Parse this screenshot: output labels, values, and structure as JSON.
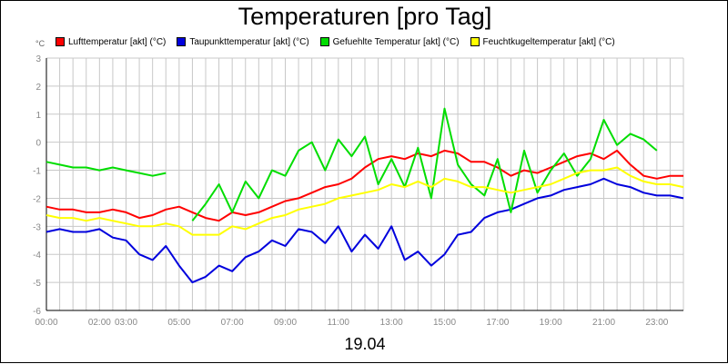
{
  "chart_data": {
    "type": "line",
    "title": "Temperaturen [pro Tag]",
    "date_label": "19.04",
    "unit": "°C",
    "ylim": [
      -6,
      3
    ],
    "xlim": [
      0,
      24
    ],
    "yticks": [
      3,
      2,
      1,
      0,
      -1,
      -2,
      -3,
      -4,
      -5,
      -6
    ],
    "xticks": [
      {
        "h": 0,
        "label": "00:00"
      },
      {
        "h": 2,
        "label": "02:00"
      },
      {
        "h": 3,
        "label": "03:00"
      },
      {
        "h": 5,
        "label": "05:00"
      },
      {
        "h": 7,
        "label": "07:00"
      },
      {
        "h": 9,
        "label": "09:00"
      },
      {
        "h": 11,
        "label": "11:00"
      },
      {
        "h": 13,
        "label": "13:00"
      },
      {
        "h": 15,
        "label": "15:00"
      },
      {
        "h": 17,
        "label": "17:00"
      },
      {
        "h": 19,
        "label": "19:00"
      },
      {
        "h": 21,
        "label": "21:00"
      },
      {
        "h": 23,
        "label": "23:00"
      }
    ],
    "grid": true,
    "legend_position": "top",
    "series": [
      {
        "name": "Lufttemperatur [akt] (°C)",
        "color": "#ff0000",
        "x": [
          0,
          0.5,
          1,
          1.5,
          2,
          2.5,
          3,
          3.5,
          4,
          4.5,
          5,
          5.5,
          6,
          6.5,
          7,
          7.5,
          8,
          8.5,
          9,
          9.5,
          10,
          10.5,
          11,
          11.5,
          12,
          12.5,
          13,
          13.5,
          14,
          14.5,
          15,
          15.5,
          16,
          16.5,
          17,
          17.5,
          18,
          18.5,
          19,
          19.5,
          20,
          20.5,
          21,
          21.5,
          22,
          22.5,
          23,
          23.5,
          24
        ],
        "y": [
          -2.3,
          -2.4,
          -2.4,
          -2.5,
          -2.5,
          -2.4,
          -2.5,
          -2.7,
          -2.6,
          -2.4,
          -2.3,
          -2.5,
          -2.7,
          -2.8,
          -2.5,
          -2.6,
          -2.5,
          -2.3,
          -2.1,
          -2.0,
          -1.8,
          -1.6,
          -1.5,
          -1.3,
          -0.9,
          -0.6,
          -0.5,
          -0.6,
          -0.4,
          -0.5,
          -0.3,
          -0.4,
          -0.7,
          -0.7,
          -0.9,
          -1.2,
          -1.0,
          -1.1,
          -0.9,
          -0.7,
          -0.5,
          -0.4,
          -0.6,
          -0.3,
          -0.8,
          -1.2,
          -1.3,
          -1.2,
          -1.2
        ]
      },
      {
        "name": "Taupunkttemperatur [akt] (°C)",
        "color": "#0000dd",
        "x": [
          0,
          0.5,
          1,
          1.5,
          2,
          2.5,
          3,
          3.5,
          4,
          4.5,
          5,
          5.5,
          6,
          6.5,
          7,
          7.5,
          8,
          8.5,
          9,
          9.5,
          10,
          10.5,
          11,
          11.5,
          12,
          12.5,
          13,
          13.5,
          14,
          14.5,
          15,
          15.5,
          16,
          16.5,
          17,
          17.5,
          18,
          18.5,
          19,
          19.5,
          20,
          20.5,
          21,
          21.5,
          22,
          22.5,
          23,
          23.5,
          24
        ],
        "y": [
          -3.2,
          -3.1,
          -3.2,
          -3.2,
          -3.1,
          -3.4,
          -3.5,
          -4.0,
          -4.2,
          -3.7,
          -4.4,
          -5.0,
          -4.8,
          -4.4,
          -4.6,
          -4.1,
          -3.9,
          -3.5,
          -3.7,
          -3.1,
          -3.2,
          -3.6,
          -3.0,
          -3.9,
          -3.3,
          -3.8,
          -3.0,
          -4.2,
          -3.9,
          -4.4,
          -4.0,
          -3.3,
          -3.2,
          -2.7,
          -2.5,
          -2.4,
          -2.2,
          -2.0,
          -1.9,
          -1.7,
          -1.6,
          -1.5,
          -1.3,
          -1.5,
          -1.6,
          -1.8,
          -1.9,
          -1.9,
          -2.0
        ]
      },
      {
        "name": "Gefuehlte Temperatur [akt] (°C)",
        "color": "#00dd00",
        "x": [
          0,
          0.5,
          1,
          1.5,
          2,
          2.5,
          3,
          3.5,
          4,
          4.5,
          5,
          5.5,
          6,
          6.5,
          7,
          7.5,
          8,
          8.5,
          9,
          9.5,
          10,
          10.5,
          11,
          11.5,
          12,
          12.5,
          13,
          13.5,
          14,
          14.5,
          15,
          15.5,
          16,
          16.5,
          17,
          17.5,
          18,
          18.5,
          19,
          19.5,
          20,
          20.5,
          21,
          21.5,
          22,
          22.5,
          23,
          23.5,
          24
        ],
        "y": [
          -0.7,
          -0.8,
          -0.9,
          -0.9,
          -1.0,
          -0.9,
          -1.0,
          -1.1,
          -1.2,
          -1.1,
          null,
          -2.8,
          -2.2,
          -1.5,
          -2.5,
          -1.4,
          -2.0,
          -1.0,
          -1.2,
          -0.3,
          0.0,
          -1.0,
          0.1,
          -0.5,
          0.2,
          -1.5,
          -0.6,
          -1.6,
          -0.2,
          -2.0,
          1.2,
          -0.8,
          -1.5,
          -1.9,
          -0.6,
          -2.5,
          -0.3,
          -1.8,
          -1.0,
          -0.4,
          -1.2,
          -0.6,
          0.8,
          -0.1,
          0.3,
          0.1,
          -0.3,
          null,
          null
        ]
      },
      {
        "name": "Feuchtkugeltemperatur [akt] (°C)",
        "color": "#ffff00",
        "x": [
          0,
          0.5,
          1,
          1.5,
          2,
          2.5,
          3,
          3.5,
          4,
          4.5,
          5,
          5.5,
          6,
          6.5,
          7,
          7.5,
          8,
          8.5,
          9,
          9.5,
          10,
          10.5,
          11,
          11.5,
          12,
          12.5,
          13,
          13.5,
          14,
          14.5,
          15,
          15.5,
          16,
          16.5,
          17,
          17.5,
          18,
          18.5,
          19,
          19.5,
          20,
          20.5,
          21,
          21.5,
          22,
          22.5,
          23,
          23.5,
          24
        ],
        "y": [
          -2.6,
          -2.7,
          -2.7,
          -2.8,
          -2.7,
          -2.8,
          -2.9,
          -3.0,
          -3.0,
          -2.9,
          -3.0,
          -3.3,
          -3.3,
          -3.3,
          -3.0,
          -3.1,
          -2.9,
          -2.7,
          -2.6,
          -2.4,
          -2.3,
          -2.2,
          -2.0,
          -1.9,
          -1.8,
          -1.7,
          -1.5,
          -1.6,
          -1.4,
          -1.6,
          -1.3,
          -1.4,
          -1.6,
          -1.6,
          -1.7,
          -1.8,
          -1.7,
          -1.6,
          -1.5,
          -1.3,
          -1.1,
          -1.0,
          -1.0,
          -0.9,
          -1.2,
          -1.4,
          -1.5,
          -1.5,
          -1.6
        ]
      }
    ]
  }
}
